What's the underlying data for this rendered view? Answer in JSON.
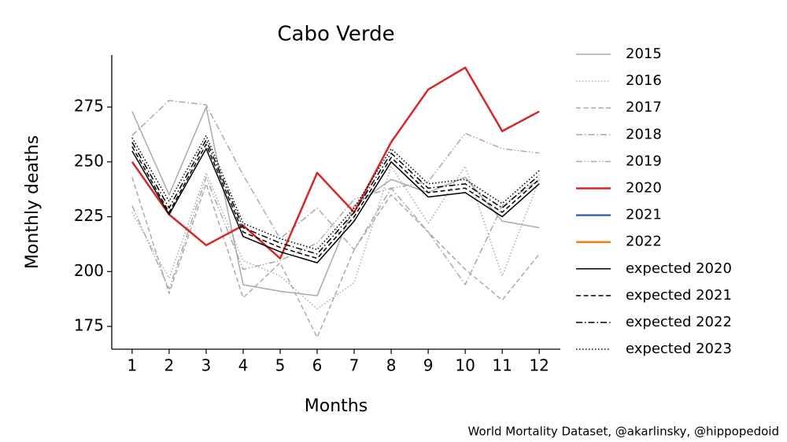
{
  "chart_data": {
    "type": "line",
    "title": "Cabo Verde",
    "xlabel": "Months",
    "ylabel": "Monthly deaths",
    "source": "World Mortality Dataset, @akarlinsky, @hippopedoid",
    "x": [
      1,
      2,
      3,
      4,
      5,
      6,
      7,
      8,
      9,
      10,
      11,
      12
    ],
    "xlim": [
      0.45,
      12.57
    ],
    "xticks": [
      1,
      2,
      3,
      4,
      5,
      6,
      7,
      8,
      9,
      10,
      11,
      12
    ],
    "ylim": [
      164.6,
      298.7
    ],
    "yticks": [
      175,
      200,
      225,
      250,
      275
    ],
    "grid": false,
    "legend": "outside right",
    "series": [
      {
        "name": "2015",
        "color": "#aaaaaa",
        "linestyle": "solid",
        "linewidth": 1.5,
        "values": [
          273,
          235,
          275,
          194,
          191,
          189,
          230,
          242,
          236,
          243,
          223,
          220
        ]
      },
      {
        "name": "2016",
        "color": "#aaaaaa",
        "linestyle": "dotted",
        "linewidth": 1.5,
        "values": [
          227,
          197,
          245,
          205,
          198,
          183,
          195,
          248,
          222,
          248,
          198,
          242
        ]
      },
      {
        "name": "2017",
        "color": "#aaaaaa",
        "linestyle": "dashed",
        "linewidth": 1.5,
        "values": [
          243,
          190,
          240,
          188,
          204,
          170,
          210,
          235,
          218,
          201,
          187,
          208
        ]
      },
      {
        "name": "2018",
        "color": "#aaaaaa",
        "linestyle": "dashdot",
        "linewidth": 1.5,
        "values": [
          262,
          278,
          276,
          244,
          215,
          229,
          210,
          238,
          218,
          194,
          230,
          242
        ]
      },
      {
        "name": "2019",
        "color": "#aaaaaa",
        "linestyle": "dashdotdot",
        "linewidth": 1.5,
        "values": [
          230,
          192,
          243,
          201,
          205,
          213,
          233,
          238,
          241,
          263,
          256,
          254
        ]
      },
      {
        "name": "2020",
        "color": "#d62728",
        "linestyle": "solid",
        "linewidth": 2.5,
        "values": [
          250,
          226,
          212,
          221,
          206,
          245,
          227,
          259,
          283,
          293,
          264,
          273
        ]
      },
      {
        "name": "2021",
        "color": "#3a6aab",
        "linestyle": "solid",
        "linewidth": 2.5,
        "values": [
          null,
          null,
          null,
          null,
          null,
          null,
          null,
          null,
          null,
          null,
          null,
          null
        ]
      },
      {
        "name": "2022",
        "color": "#ff7f0e",
        "linestyle": "solid",
        "linewidth": 2.5,
        "values": [
          null,
          null,
          null,
          null,
          null,
          null,
          null,
          null,
          null,
          null,
          null,
          null
        ]
      },
      {
        "name": "expected 2020",
        "color": "#000000",
        "linestyle": "solid",
        "linewidth": 1.5,
        "values": [
          255,
          226,
          256,
          216,
          209,
          204,
          223,
          250,
          234,
          236,
          225,
          240
        ]
      },
      {
        "name": "expected 2021",
        "color": "#000000",
        "linestyle": "dashed",
        "linewidth": 1.5,
        "values": [
          257,
          227,
          258,
          218,
          211,
          206,
          225,
          252,
          236,
          238,
          227,
          242
        ]
      },
      {
        "name": "expected 2022",
        "color": "#000000",
        "linestyle": "dashdot",
        "linewidth": 1.5,
        "values": [
          259,
          229,
          260,
          220,
          213,
          208,
          227,
          254,
          238,
          240,
          229,
          244
        ]
      },
      {
        "name": "expected 2023",
        "color": "#000000",
        "linestyle": "dotted",
        "linewidth": 1.5,
        "values": [
          261,
          232,
          262,
          222,
          215,
          210,
          229,
          256,
          240,
          242,
          231,
          246
        ]
      }
    ]
  }
}
